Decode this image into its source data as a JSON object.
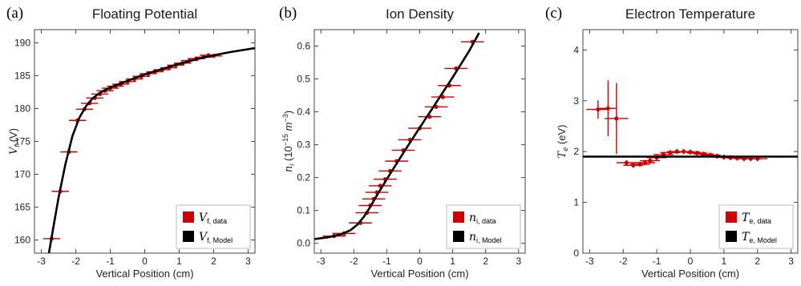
{
  "colors": {
    "data": "#cc0000",
    "model": "#000000"
  },
  "chart_data": [
    {
      "type": "scatter",
      "panel_label": "(a)",
      "title": "Floating Potential",
      "xlabel": "Vertical Position (cm)",
      "ylabel": {
        "sym": "V",
        "sub": "f",
        "unit": " (V)"
      },
      "xlim": [
        -3.2,
        3.2
      ],
      "ylim": [
        158,
        192
      ],
      "xticks": [
        -3,
        -2,
        -1,
        0,
        1,
        2,
        3
      ],
      "yticks": [
        160,
        165,
        170,
        175,
        180,
        185,
        190
      ],
      "legend_position": "bottom-right",
      "series": [
        {
          "name": {
            "sym": "V",
            "sub": "f, data"
          },
          "kind": "data",
          "points": [
            {
              "x": -2.7,
              "y": 160.2,
              "xerr": 0.25,
              "yerr": 0
            },
            {
              "x": -2.45,
              "y": 167.4,
              "xerr": 0.25,
              "yerr": 0
            },
            {
              "x": -2.2,
              "y": 173.4,
              "xerr": 0.25,
              "yerr": 0
            },
            {
              "x": -1.95,
              "y": 178.2,
              "xerr": 0.25,
              "yerr": 0
            },
            {
              "x": -1.75,
              "y": 179.9,
              "xerr": 0.25,
              "yerr": 0
            },
            {
              "x": -1.6,
              "y": 180.8,
              "xerr": 0.25,
              "yerr": 0
            },
            {
              "x": -1.45,
              "y": 181.6,
              "xerr": 0.25,
              "yerr": 0
            },
            {
              "x": -1.3,
              "y": 182.2,
              "xerr": 0.25,
              "yerr": 0
            },
            {
              "x": -1.15,
              "y": 182.7,
              "xerr": 0.25,
              "yerr": 0
            },
            {
              "x": -1.0,
              "y": 183.1,
              "xerr": 0.25,
              "yerr": 0
            },
            {
              "x": -0.85,
              "y": 183.4,
              "xerr": 0.25,
              "yerr": 0
            },
            {
              "x": -0.7,
              "y": 183.7,
              "xerr": 0.25,
              "yerr": 0
            },
            {
              "x": -0.5,
              "y": 184.1,
              "xerr": 0.25,
              "yerr": 0
            },
            {
              "x": -0.3,
              "y": 184.5,
              "xerr": 0.25,
              "yerr": 0
            },
            {
              "x": -0.1,
              "y": 184.9,
              "xerr": 0.25,
              "yerr": 0
            },
            {
              "x": 0.1,
              "y": 185.3,
              "xerr": 0.25,
              "yerr": 0
            },
            {
              "x": 0.3,
              "y": 185.6,
              "xerr": 0.25,
              "yerr": 0
            },
            {
              "x": 0.5,
              "y": 185.9,
              "xerr": 0.25,
              "yerr": 0
            },
            {
              "x": 0.7,
              "y": 186.2,
              "xerr": 0.25,
              "yerr": 0
            },
            {
              "x": 0.9,
              "y": 186.6,
              "xerr": 0.25,
              "yerr": 0
            },
            {
              "x": 1.1,
              "y": 186.9,
              "xerr": 0.25,
              "yerr": 0
            },
            {
              "x": 1.3,
              "y": 187.3,
              "xerr": 0.25,
              "yerr": 0
            },
            {
              "x": 1.5,
              "y": 187.6,
              "xerr": 0.25,
              "yerr": 0
            },
            {
              "x": 1.7,
              "y": 187.8,
              "xerr": 0.25,
              "yerr": 0
            },
            {
              "x": 1.85,
              "y": 188.1,
              "xerr": 0.25,
              "yerr": 0
            },
            {
              "x": 2.0,
              "y": 188.0,
              "xerr": 0.25,
              "yerr": 0
            }
          ]
        },
        {
          "name": {
            "sym": "V",
            "sub": "f, Model"
          },
          "kind": "model",
          "points": [
            {
              "x": -2.78,
              "y": 158
            },
            {
              "x": -2.7,
              "y": 160.5
            },
            {
              "x": -2.5,
              "y": 166.5
            },
            {
              "x": -2.3,
              "y": 171.6
            },
            {
              "x": -2.1,
              "y": 175.8
            },
            {
              "x": -1.9,
              "y": 178.6
            },
            {
              "x": -1.7,
              "y": 180.4
            },
            {
              "x": -1.5,
              "y": 181.6
            },
            {
              "x": -1.3,
              "y": 182.4
            },
            {
              "x": -1.0,
              "y": 183.2
            },
            {
              "x": -0.5,
              "y": 184.2
            },
            {
              "x": 0,
              "y": 185.2
            },
            {
              "x": 0.5,
              "y": 186.0
            },
            {
              "x": 1.0,
              "y": 186.8
            },
            {
              "x": 1.5,
              "y": 187.5
            },
            {
              "x": 2.0,
              "y": 188.1
            },
            {
              "x": 2.5,
              "y": 188.6
            },
            {
              "x": 3.2,
              "y": 189.2
            }
          ]
        }
      ]
    },
    {
      "type": "scatter",
      "panel_label": "(b)",
      "title": "Ion Density",
      "xlabel": "Vertical Position (cm)",
      "ylabel": {
        "sym": "n",
        "sub": "i",
        "unit": " (10",
        "sup": "−15",
        "unit2": " m",
        "sup2": "−3",
        "unit3": ")"
      },
      "xlim": [
        -3.2,
        3.2
      ],
      "ylim": [
        -0.03,
        0.65
      ],
      "xticks": [
        -3,
        -2,
        -1,
        0,
        1,
        2,
        3
      ],
      "yticks": [
        "0.0",
        "0.1",
        "0.2",
        "0.3",
        "0.4",
        "0.5",
        "0.6"
      ],
      "legend_position": "bottom-right",
      "series": [
        {
          "name": {
            "sym": "n",
            "sub": "i, data"
          },
          "kind": "data",
          "points": [
            {
              "x": -2.6,
              "y": 0.022,
              "xerr": 0.35,
              "yerr": 0
            },
            {
              "x": -2.3,
              "y": 0.03,
              "xerr": 0.35,
              "yerr": 0
            },
            {
              "x": -1.8,
              "y": 0.062,
              "xerr": 0.35,
              "yerr": 0
            },
            {
              "x": -1.6,
              "y": 0.093,
              "xerr": 0.35,
              "yerr": 0
            },
            {
              "x": -1.5,
              "y": 0.115,
              "xerr": 0.35,
              "yerr": 0
            },
            {
              "x": -1.4,
              "y": 0.135,
              "xerr": 0.35,
              "yerr": 0
            },
            {
              "x": -1.3,
              "y": 0.155,
              "xerr": 0.35,
              "yerr": 0
            },
            {
              "x": -1.2,
              "y": 0.175,
              "xerr": 0.35,
              "yerr": 0
            },
            {
              "x": -1.05,
              "y": 0.195,
              "xerr": 0.35,
              "yerr": 0
            },
            {
              "x": -0.9,
              "y": 0.22,
              "xerr": 0.35,
              "yerr": 0
            },
            {
              "x": -0.7,
              "y": 0.25,
              "xerr": 0.35,
              "yerr": 0
            },
            {
              "x": -0.5,
              "y": 0.283,
              "xerr": 0.35,
              "yerr": 0
            },
            {
              "x": -0.3,
              "y": 0.315,
              "xerr": 0.35,
              "yerr": 0
            },
            {
              "x": 0.0,
              "y": 0.35,
              "xerr": 0.35,
              "yerr": 0
            },
            {
              "x": 0.3,
              "y": 0.385,
              "xerr": 0.35,
              "yerr": 0
            },
            {
              "x": 0.5,
              "y": 0.415,
              "xerr": 0.35,
              "yerr": 0
            },
            {
              "x": 0.7,
              "y": 0.445,
              "xerr": 0.35,
              "yerr": 0
            },
            {
              "x": 0.9,
              "y": 0.48,
              "xerr": 0.35,
              "yerr": 0
            },
            {
              "x": 1.1,
              "y": 0.532,
              "xerr": 0.35,
              "yerr": 0
            },
            {
              "x": 1.6,
              "y": 0.613,
              "xerr": 0.35,
              "yerr": 0
            }
          ]
        },
        {
          "name": {
            "sym": "n",
            "sub": "i, Model"
          },
          "kind": "model",
          "points": [
            {
              "x": -3.2,
              "y": 0.013
            },
            {
              "x": -2.8,
              "y": 0.018
            },
            {
              "x": -2.4,
              "y": 0.027
            },
            {
              "x": -2.1,
              "y": 0.04
            },
            {
              "x": -1.9,
              "y": 0.056
            },
            {
              "x": -1.7,
              "y": 0.08
            },
            {
              "x": -1.5,
              "y": 0.111
            },
            {
              "x": -1.3,
              "y": 0.146
            },
            {
              "x": -1.0,
              "y": 0.195
            },
            {
              "x": -0.5,
              "y": 0.275
            },
            {
              "x": 0.0,
              "y": 0.352
            },
            {
              "x": 0.5,
              "y": 0.428
            },
            {
              "x": 1.0,
              "y": 0.505
            },
            {
              "x": 1.5,
              "y": 0.585
            },
            {
              "x": 1.8,
              "y": 0.64
            }
          ]
        }
      ]
    },
    {
      "type": "scatter",
      "panel_label": "(c)",
      "title": "Electron Temperature",
      "xlabel": "Vertical Position (cm)",
      "ylabel": {
        "sym": "T",
        "sub": "e",
        "unit": " (eV)"
      },
      "xlim": [
        -3.2,
        3.2
      ],
      "ylim": [
        0,
        4.4
      ],
      "xticks": [
        -3,
        -2,
        -1,
        0,
        1,
        2,
        3
      ],
      "yticks": [
        0,
        1,
        2,
        3,
        4
      ],
      "legend_position": "bottom-right",
      "series": [
        {
          "name": {
            "sym": "T",
            "sub": "e, data"
          },
          "kind": "data",
          "points": [
            {
              "x": -2.75,
              "y": 2.83,
              "xerr": 0.35,
              "yerr": 0.18
            },
            {
              "x": -2.45,
              "y": 2.85,
              "xerr": 0.25,
              "yerr": 0.55
            },
            {
              "x": -2.2,
              "y": 2.65,
              "xerr": 0.35,
              "yerr": 0.7
            },
            {
              "x": -1.9,
              "y": 1.78,
              "xerr": 0.3,
              "yerr": 0.05
            },
            {
              "x": -1.7,
              "y": 1.73,
              "xerr": 0.3,
              "yerr": 0.05
            },
            {
              "x": -1.5,
              "y": 1.75,
              "xerr": 0.3,
              "yerr": 0.05
            },
            {
              "x": -1.35,
              "y": 1.78,
              "xerr": 0.3,
              "yerr": 0.05
            },
            {
              "x": -1.2,
              "y": 1.82,
              "xerr": 0.3,
              "yerr": 0.05
            },
            {
              "x": -1.0,
              "y": 1.88,
              "xerr": 0.3,
              "yerr": 0.05
            },
            {
              "x": -0.8,
              "y": 1.94,
              "xerr": 0.3,
              "yerr": 0.05
            },
            {
              "x": -0.6,
              "y": 1.98,
              "xerr": 0.3,
              "yerr": 0.05
            },
            {
              "x": -0.4,
              "y": 2.0,
              "xerr": 0.3,
              "yerr": 0.05
            },
            {
              "x": -0.2,
              "y": 2.0,
              "xerr": 0.3,
              "yerr": 0.05
            },
            {
              "x": 0.0,
              "y": 1.99,
              "xerr": 0.3,
              "yerr": 0.05
            },
            {
              "x": 0.2,
              "y": 1.97,
              "xerr": 0.3,
              "yerr": 0.05
            },
            {
              "x": 0.4,
              "y": 1.95,
              "xerr": 0.3,
              "yerr": 0.05
            },
            {
              "x": 0.6,
              "y": 1.93,
              "xerr": 0.3,
              "yerr": 0.05
            },
            {
              "x": 0.8,
              "y": 1.91,
              "xerr": 0.3,
              "yerr": 0.05
            },
            {
              "x": 1.0,
              "y": 1.89,
              "xerr": 0.3,
              "yerr": 0.05
            },
            {
              "x": 1.2,
              "y": 1.88,
              "xerr": 0.3,
              "yerr": 0.05
            },
            {
              "x": 1.4,
              "y": 1.87,
              "xerr": 0.3,
              "yerr": 0.05
            },
            {
              "x": 1.6,
              "y": 1.86,
              "xerr": 0.3,
              "yerr": 0.05
            },
            {
              "x": 1.8,
              "y": 1.86,
              "xerr": 0.3,
              "yerr": 0.05
            },
            {
              "x": 2.0,
              "y": 1.86,
              "xerr": 0.3,
              "yerr": 0.05
            }
          ]
        },
        {
          "name": {
            "sym": "T",
            "sub": "e, Model"
          },
          "kind": "model",
          "points": [
            {
              "x": -3.2,
              "y": 1.9
            },
            {
              "x": 3.2,
              "y": 1.9
            }
          ]
        }
      ]
    }
  ]
}
